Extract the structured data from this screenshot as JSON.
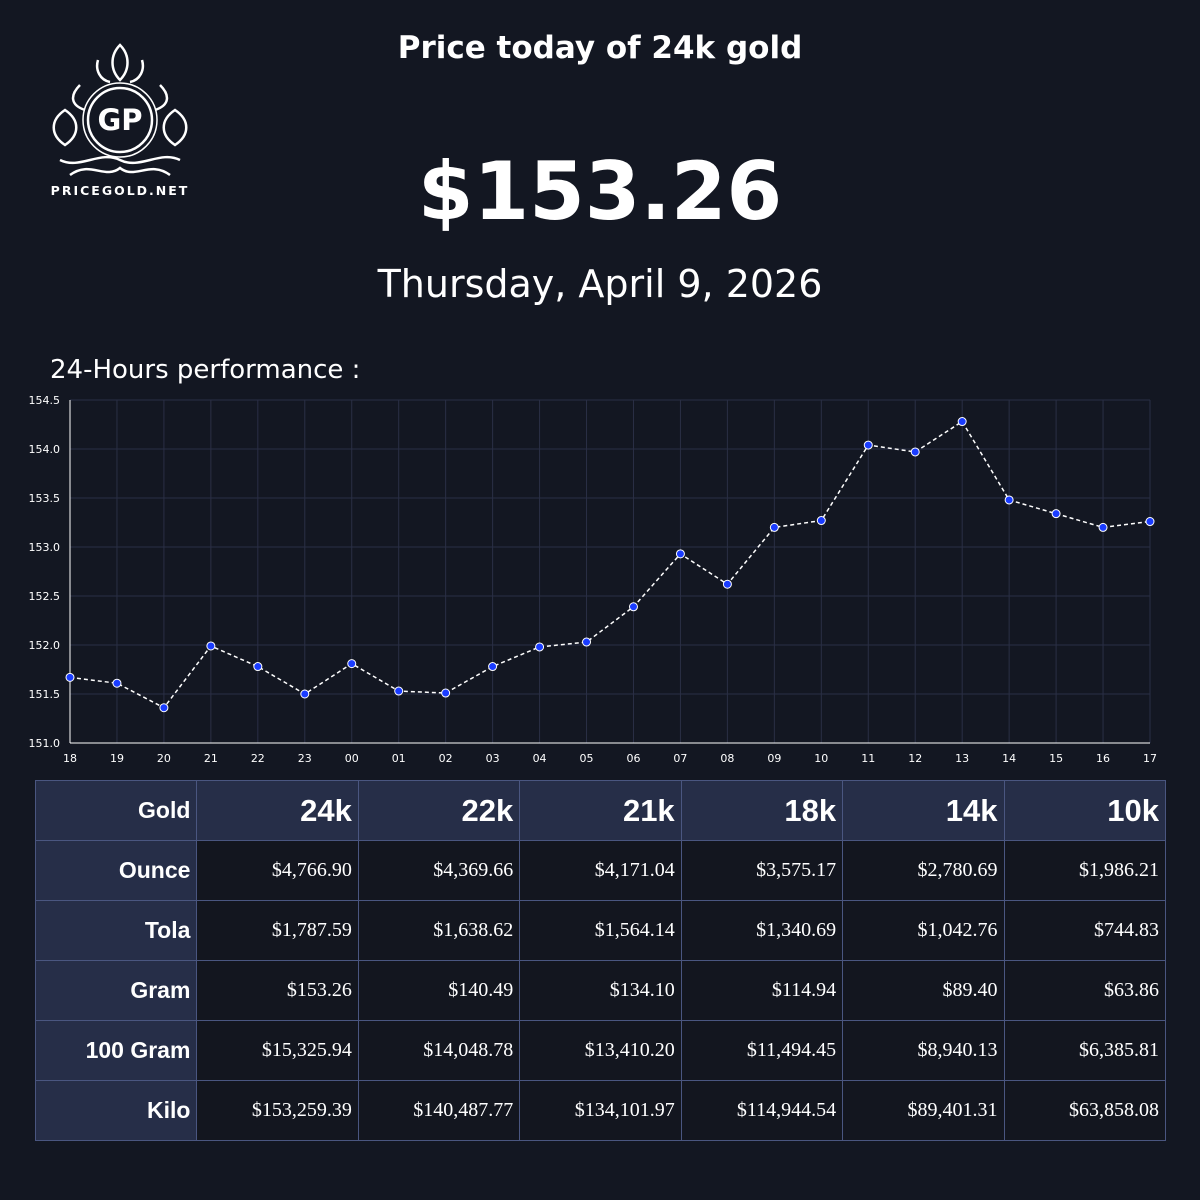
{
  "logo": {
    "initials": "GP",
    "name": "PRICEGOLD.NET"
  },
  "header": {
    "title": "Price today of 24k gold",
    "price": "$153.26",
    "date": "Thursday, April 9, 2026"
  },
  "chart_data": {
    "type": "line",
    "title": "24-Hours performance :",
    "categories": [
      "18",
      "19",
      "20",
      "21",
      "22",
      "23",
      "00",
      "01",
      "02",
      "03",
      "04",
      "05",
      "06",
      "07",
      "08",
      "09",
      "10",
      "11",
      "12",
      "13",
      "14",
      "15",
      "16",
      "17"
    ],
    "values": [
      151.67,
      151.61,
      151.36,
      151.99,
      151.78,
      151.5,
      151.81,
      151.53,
      151.51,
      151.78,
      151.98,
      152.03,
      152.39,
      152.93,
      152.62,
      153.2,
      153.27,
      154.04,
      153.97,
      154.28,
      153.48,
      153.34,
      153.2,
      153.26
    ],
    "ylim": [
      151,
      154.5
    ],
    "yticks": [
      {
        "value": 151,
        "label": "151.0"
      },
      151.5,
      {
        "value": 152,
        "label": "152.0"
      },
      152.5,
      {
        "value": 153,
        "label": "153.0"
      },
      153.5,
      {
        "value": 154,
        "label": "154.0"
      },
      154.5
    ],
    "grid": true,
    "color": "#1a3cff",
    "line_color": "#ffffff"
  },
  "table": {
    "header": [
      "Gold",
      "24k",
      "22k",
      "21k",
      "18k",
      "14k",
      "10k"
    ],
    "rows": [
      [
        "Ounce",
        "$4,766.90",
        "$4,369.66",
        "$4,171.04",
        "$3,575.17",
        "$2,780.69",
        "$1,986.21"
      ],
      [
        "Tola",
        "$1,787.59",
        "$1,638.62",
        "$1,564.14",
        "$1,340.69",
        "$1,042.76",
        "$744.83"
      ],
      [
        "Gram",
        "$153.26",
        "$140.49",
        "$134.10",
        "$114.94",
        "$89.40",
        "$63.86"
      ],
      [
        "100 Gram",
        "$15,325.94",
        "$14,048.78",
        "$13,410.20",
        "$11,494.45",
        "$8,940.13",
        "$6,385.81"
      ],
      [
        "Kilo",
        "$153,259.39",
        "$140,487.77",
        "$134,101.97",
        "$114,944.54",
        "$89,401.31",
        "$63,858.08"
      ]
    ]
  }
}
